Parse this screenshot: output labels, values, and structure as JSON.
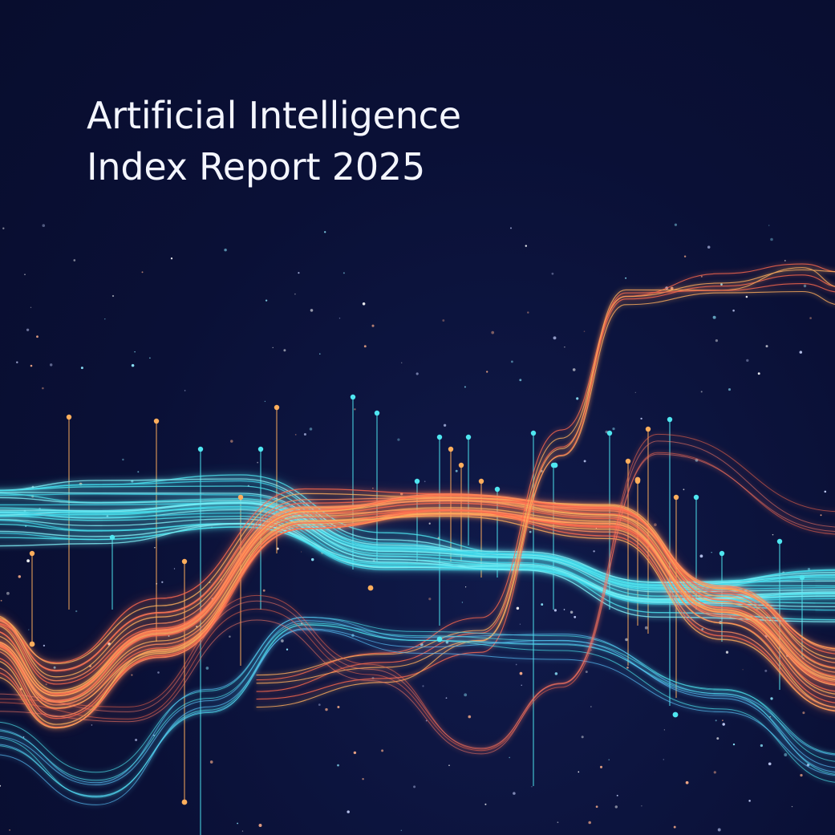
{
  "title": {
    "line1": "Artificial Intelligence",
    "line2": "Index Report 2025"
  },
  "colors": {
    "background": "#0a1036",
    "cyan": "#4fe6f0",
    "coral": "#ff6a4d",
    "orange": "#ffae5c",
    "text": "#f4f6ff"
  },
  "artwork": "abstract flowing data waves with vertical spikes and scattered particles"
}
